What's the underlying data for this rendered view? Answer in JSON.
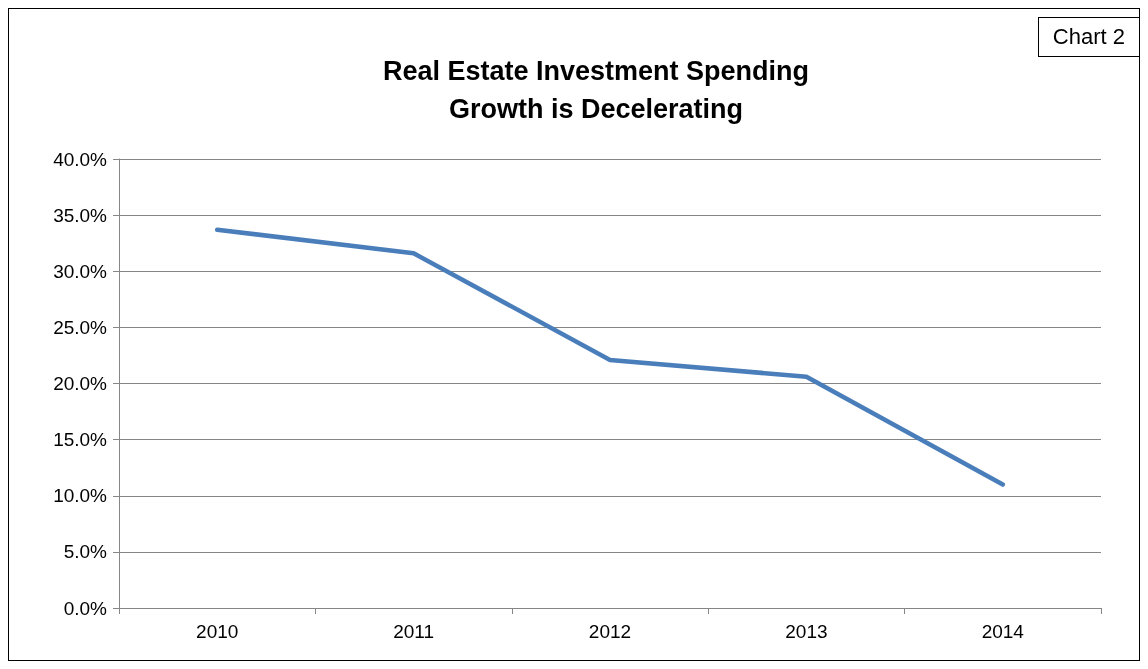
{
  "chart_data": {
    "type": "line",
    "title": "Real Estate Investment Spending\nGrowth is Decelerating",
    "annotations": [
      "Chart 2"
    ],
    "categories": [
      "2010",
      "2011",
      "2012",
      "2013",
      "2014"
    ],
    "series": [
      {
        "color": "#4a7ebb",
        "values": [
          33.7,
          31.6,
          22.1,
          20.6,
          11.0
        ]
      }
    ],
    "ylim": [
      0,
      40
    ],
    "yticks": [
      {
        "value": 0,
        "label": "0.0%"
      },
      {
        "value": 5,
        "label": "5.0%"
      },
      {
        "value": 10,
        "label": "10.0%"
      },
      {
        "value": 15,
        "label": "15.0%"
      },
      {
        "value": 20,
        "label": "20.0%"
      },
      {
        "value": 25,
        "label": "25.0%"
      },
      {
        "value": 30,
        "label": "30.0%"
      },
      {
        "value": 35,
        "label": "35.0%"
      },
      {
        "value": 40,
        "label": "40.0%"
      }
    ],
    "grid": "y",
    "marker": "none",
    "line_style": "solid"
  }
}
